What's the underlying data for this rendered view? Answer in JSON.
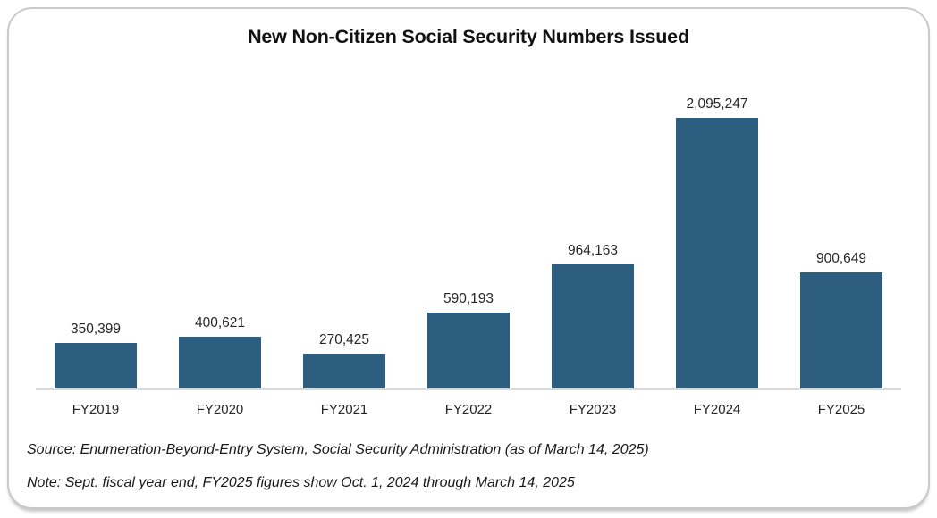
{
  "chart_data": {
    "type": "bar",
    "title": "New Non-Citizen Social Security Numbers Issued",
    "categories": [
      "FY2019",
      "FY2020",
      "FY2021",
      "FY2022",
      "FY2023",
      "FY2024",
      "FY2025"
    ],
    "values": [
      350399,
      400621,
      270425,
      590193,
      964163,
      2095247,
      900649
    ],
    "value_labels": [
      "350,399",
      "400,621",
      "270,425",
      "590,193",
      "964,163",
      "2,095,247",
      "900,649"
    ],
    "xlabel": "",
    "ylabel": "",
    "ylim": [
      0,
      2095247
    ],
    "grid": false,
    "legend": "none",
    "bar_color": "#2d5e80",
    "axis_line_color": "#d9d9d9"
  },
  "footnotes": {
    "source": "Source: Enumeration-Beyond-Entry System, Social Security Administration (as of March 14, 2025)",
    "note": "Note: Sept. fiscal year end, FY2025 figures show Oct. 1, 2024 through March 14, 2025"
  }
}
